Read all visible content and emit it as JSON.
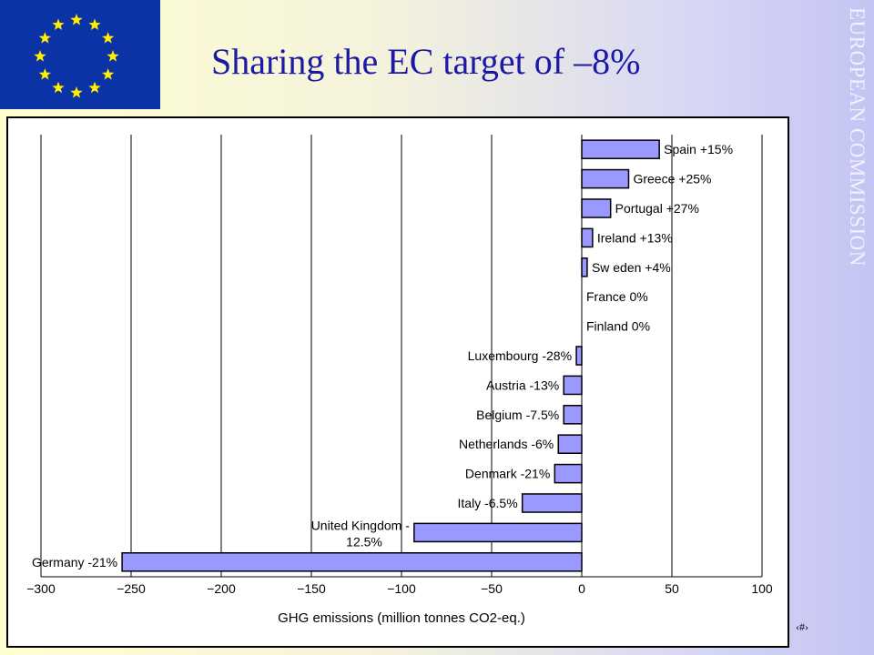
{
  "slide": {
    "title": "Sharing the EC target of –8%",
    "side_label": "EUROPEAN COMMISSION",
    "slide_number": "‹#›",
    "flag_icon": "eu-flag-icon",
    "colors": {
      "title": "#1a1aa6",
      "flag_blue": "#0b33a5",
      "star_yellow": "#ffee00",
      "bar_fill": "#9999ff"
    }
  },
  "chart_data": {
    "type": "bar",
    "orientation": "horizontal",
    "xlabel": "GHG emissions (million tonnes CO2-eq.)",
    "xlim": [
      -300,
      100
    ],
    "xticks": [
      -300,
      -250,
      -200,
      -150,
      -100,
      -50,
      0,
      50,
      100
    ],
    "grid": true,
    "categories": [
      "Spain +15%",
      "Greece +25%",
      "Portugal +27%",
      "Ireland +13%",
      "Sw eden +4%",
      "France 0%",
      "Finland 0%",
      "Luxembourg -28%",
      "Austria -13%",
      "Belgium -7.5%",
      "Netherlands -6%",
      "Denmark -21%",
      "Italy -6.5%",
      "United Kingdom -\n12.5%",
      "Germany -21%"
    ],
    "values": [
      43,
      26,
      16,
      6,
      3,
      0,
      0,
      -3,
      -10,
      -10,
      -13,
      -15,
      -33,
      -93,
      -255
    ]
  }
}
